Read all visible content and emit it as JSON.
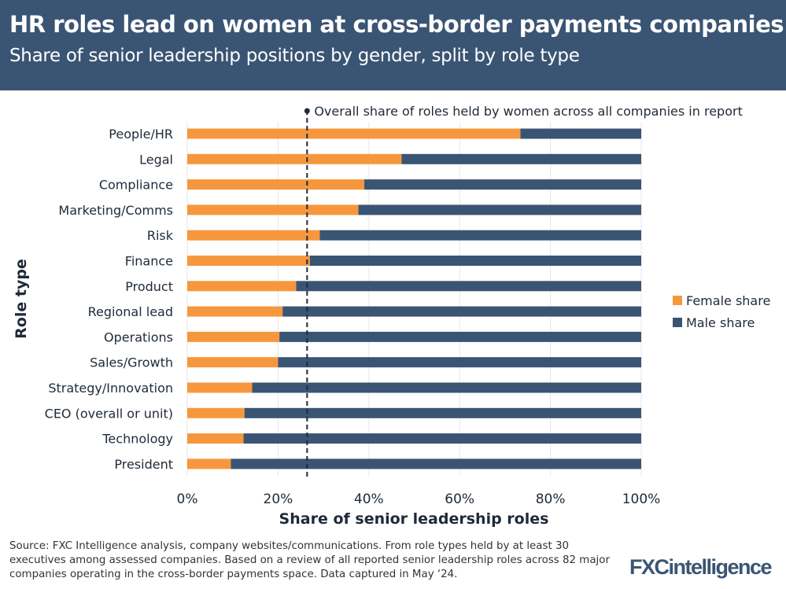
{
  "header": {
    "title": "HR roles lead on women at cross-border payments companies",
    "subtitle": "Share of senior leadership positions by gender, split by role type"
  },
  "chart_data": {
    "type": "bar",
    "orientation": "horizontal-stacked",
    "title": "HR roles lead on women at cross-border payments companies",
    "subtitle": "Share of senior leadership positions by gender, split by role type",
    "xlabel": "Share of senior leadership roles",
    "ylabel": "Role type",
    "xlim": [
      0,
      100
    ],
    "xticks": [
      "0%",
      "20%",
      "40%",
      "60%",
      "80%",
      "100%"
    ],
    "xtick_values": [
      0,
      20,
      40,
      60,
      80,
      100
    ],
    "categories": [
      "People/HR",
      "Legal",
      "Compliance",
      "Marketing/Comms",
      "Risk",
      "Finance",
      "Product",
      "Regional lead",
      "Operations",
      "Sales/Growth",
      "Strategy/Innovation",
      "CEO (overall or unit)",
      "Technology",
      "President"
    ],
    "series": [
      {
        "name": "Female share",
        "color": "#f7973d",
        "values": [
          73.4,
          47.2,
          39.0,
          37.7,
          29.2,
          27.0,
          24.0,
          21.0,
          20.3,
          20.0,
          14.3,
          12.6,
          12.4,
          9.6
        ]
      },
      {
        "name": "Male share",
        "color": "#3a5573",
        "values": [
          26.6,
          52.8,
          61.0,
          62.3,
          70.8,
          73.0,
          76.0,
          79.0,
          79.7,
          80.0,
          85.7,
          87.4,
          87.6,
          90.4
        ]
      }
    ],
    "reference_line": {
      "value": 26.4,
      "label": "Overall share of roles held by women across all companies in report"
    },
    "legend_position": "right",
    "grid": true
  },
  "source": "Source: FXC Intelligence analysis, company websites/communications. From role types held by at least 30 executives among assessed companies. Based on a review of all reported senior leadership roles across 82 major companies operating in the cross-border payments space. Data captured in May ‘24.",
  "logo": "FXCintelligence"
}
